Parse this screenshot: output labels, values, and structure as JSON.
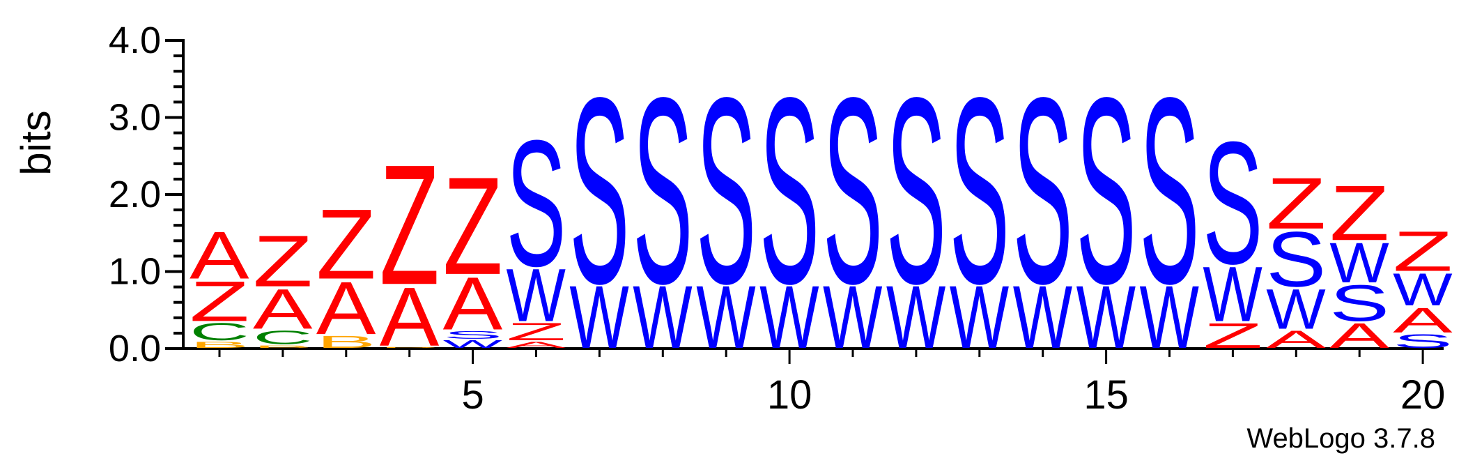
{
  "chart_data": {
    "type": "sequence-logo",
    "ylabel": "bits",
    "xlabel": "",
    "ylim": [
      0,
      4.0
    ],
    "yticks": [
      0.0,
      1.0,
      2.0,
      3.0,
      4.0
    ],
    "ytick_labels": [
      "0.0",
      "1.0",
      "2.0",
      "3.0",
      "4.0"
    ],
    "xticks": [
      5,
      10,
      15,
      20
    ],
    "xtick_labels": [
      "5",
      "10",
      "15",
      "20"
    ],
    "positions": [
      1,
      2,
      3,
      4,
      5,
      6,
      7,
      8,
      9,
      10,
      11,
      12,
      13,
      14,
      15,
      16,
      17,
      18,
      19,
      20
    ],
    "letter_colors": {
      "A": "#ff0000",
      "Z": "#ff0000",
      "S": "#0000ff",
      "W": "#0000ff",
      "C": "#008000",
      "B": "#ffa500"
    },
    "stacks": [
      [
        {
          "letter": "B",
          "bits": 0.1
        },
        {
          "letter": "C",
          "bits": 0.25
        },
        {
          "letter": "Z",
          "bits": 0.55
        },
        {
          "letter": "A",
          "bits": 0.65
        }
      ],
      [
        {
          "letter": "B",
          "bits": 0.05
        },
        {
          "letter": "C",
          "bits": 0.2
        },
        {
          "letter": "A",
          "bits": 0.55
        },
        {
          "letter": "Z",
          "bits": 0.7
        }
      ],
      [
        {
          "letter": "B",
          "bits": 0.18
        },
        {
          "letter": "A",
          "bits": 0.72
        },
        {
          "letter": "Z",
          "bits": 0.95
        }
      ],
      [
        {
          "letter": "B",
          "bits": 0.03
        },
        {
          "letter": "A",
          "bits": 0.8
        },
        {
          "letter": "Z",
          "bits": 1.62
        }
      ],
      [
        {
          "letter": "W",
          "bits": 0.12
        },
        {
          "letter": "S",
          "bits": 0.12
        },
        {
          "letter": "A",
          "bits": 0.72
        },
        {
          "letter": "Z",
          "bits": 1.32
        }
      ],
      [
        {
          "letter": "A",
          "bits": 0.1
        },
        {
          "letter": "Z",
          "bits": 0.25
        },
        {
          "letter": "W",
          "bits": 0.72
        },
        {
          "letter": "S",
          "bits": 1.7
        }
      ],
      [
        {
          "letter": "W",
          "bits": 0.85
        },
        {
          "letter": "S",
          "bits": 2.5
        }
      ],
      [
        {
          "letter": "W",
          "bits": 0.85
        },
        {
          "letter": "S",
          "bits": 2.5
        }
      ],
      [
        {
          "letter": "W",
          "bits": 0.85
        },
        {
          "letter": "S",
          "bits": 2.5
        }
      ],
      [
        {
          "letter": "W",
          "bits": 0.85
        },
        {
          "letter": "S",
          "bits": 2.5
        }
      ],
      [
        {
          "letter": "W",
          "bits": 0.85
        },
        {
          "letter": "S",
          "bits": 2.5
        }
      ],
      [
        {
          "letter": "W",
          "bits": 0.85
        },
        {
          "letter": "S",
          "bits": 2.5
        }
      ],
      [
        {
          "letter": "W",
          "bits": 0.85
        },
        {
          "letter": "S",
          "bits": 2.5
        }
      ],
      [
        {
          "letter": "W",
          "bits": 0.85
        },
        {
          "letter": "S",
          "bits": 2.5
        }
      ],
      [
        {
          "letter": "W",
          "bits": 0.85
        },
        {
          "letter": "S",
          "bits": 2.5
        }
      ],
      [
        {
          "letter": "W",
          "bits": 0.85
        },
        {
          "letter": "S",
          "bits": 2.5
        }
      ],
      [
        {
          "letter": "Z",
          "bits": 0.35
        },
        {
          "letter": "W",
          "bits": 0.75
        },
        {
          "letter": "S",
          "bits": 1.65
        }
      ],
      [
        {
          "letter": "A",
          "bits": 0.25
        },
        {
          "letter": "W",
          "bits": 0.55
        },
        {
          "letter": "S",
          "bits": 0.75
        },
        {
          "letter": "Z",
          "bits": 0.7
        }
      ],
      [
        {
          "letter": "A",
          "bits": 0.35
        },
        {
          "letter": "S",
          "bits": 0.5
        },
        {
          "letter": "W",
          "bits": 0.55
        },
        {
          "letter": "Z",
          "bits": 0.75
        }
      ],
      [
        {
          "letter": "S",
          "bits": 0.2
        },
        {
          "letter": "A",
          "bits": 0.35
        },
        {
          "letter": "W",
          "bits": 0.45
        },
        {
          "letter": "Z",
          "bits": 0.55
        }
      ]
    ]
  },
  "footer": {
    "credit": "WebLogo 3.7.8"
  }
}
